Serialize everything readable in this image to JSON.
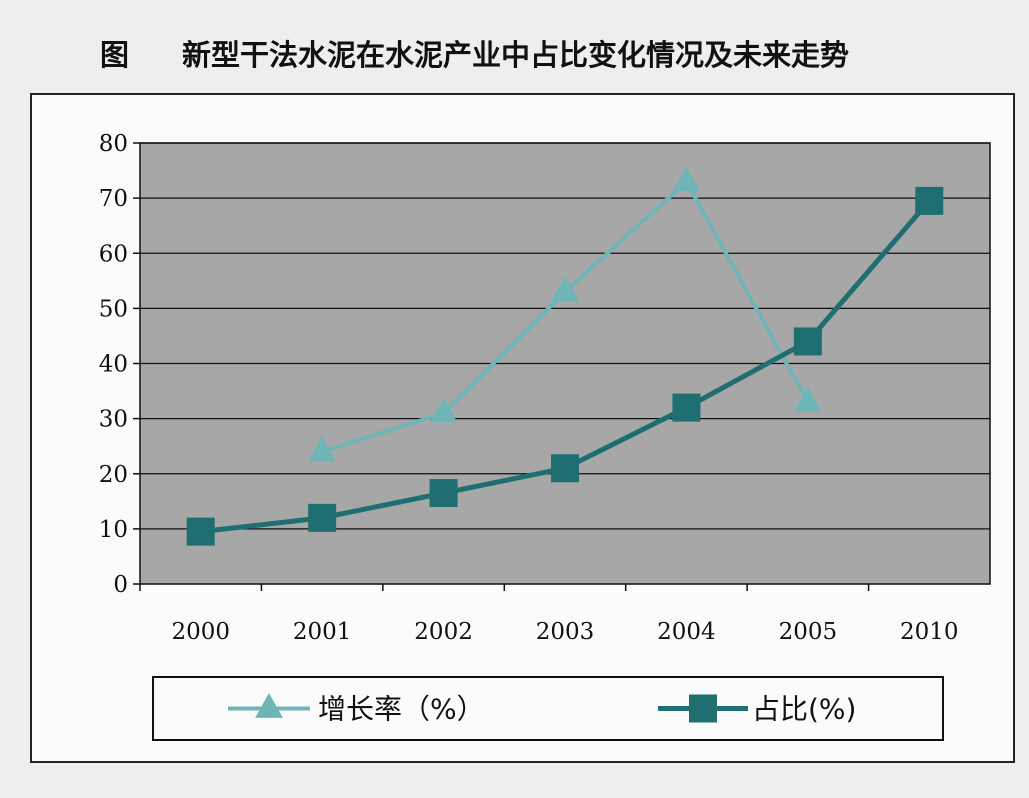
{
  "figure_label": "图",
  "title": "新型干法水泥在水泥产业中占比变化情况及未来走势",
  "colors": {
    "plot_bg": "#a7a7a7",
    "growth_series": "#6fb5b8",
    "share_series": "#1f6e72",
    "gridline": "#111111"
  },
  "chart_data": {
    "type": "line",
    "categories": [
      "2000",
      "2001",
      "2002",
      "2003",
      "2004",
      "2005",
      "2010"
    ],
    "ylim": [
      0,
      80
    ],
    "y_ticks": [
      "0",
      "10",
      "20",
      "30",
      "40",
      "50",
      "60",
      "70",
      "80"
    ],
    "grid": true,
    "legend_position": "bottom",
    "series": [
      {
        "name": "增长率（%）",
        "marker": "triangle",
        "color": "#6fb5b8",
        "values": [
          null,
          24,
          31,
          53,
          73,
          33,
          null
        ]
      },
      {
        "name": "占比(%)",
        "marker": "square",
        "color": "#1f6e72",
        "values": [
          9.5,
          12,
          16.5,
          21,
          32,
          44,
          69.5
        ]
      }
    ]
  }
}
